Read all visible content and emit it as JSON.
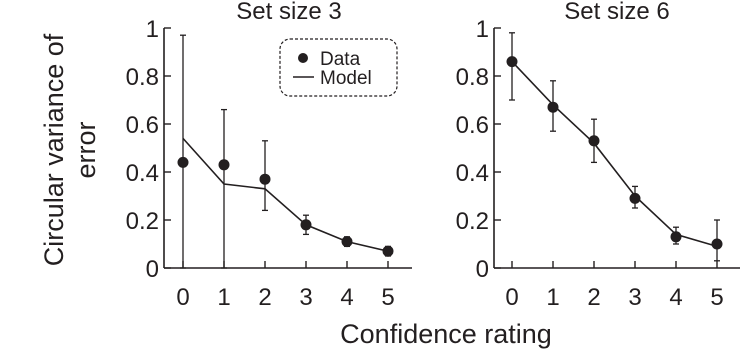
{
  "figure": {
    "ylabel_line1": "Circular variance of",
    "ylabel_line2": "error",
    "xlabel": "Confidence rating"
  },
  "legend": {
    "data_label": "Data",
    "model_label": "Model"
  },
  "chart_data": [
    {
      "type": "line",
      "title": "Set size 3",
      "x": [
        0,
        1,
        2,
        3,
        4,
        5
      ],
      "xticks": [
        "0",
        "1",
        "2",
        "3",
        "4",
        "5"
      ],
      "yticks": [
        "0",
        "0.2",
        "0.4",
        "0.6",
        "0.8",
        "1"
      ],
      "ylim": [
        0,
        1
      ],
      "xlabel": "Confidence rating",
      "ylabel": "Circular variance of error",
      "legend_position": "top-right",
      "series": [
        {
          "name": "Data",
          "kind": "points",
          "values": [
            0.44,
            0.43,
            0.37,
            0.18,
            0.11,
            0.07
          ],
          "err_low": [
            0.0,
            0.0,
            0.24,
            0.14,
            0.09,
            0.05
          ],
          "err_high": [
            0.97,
            0.66,
            0.53,
            0.22,
            0.13,
            0.09
          ]
        },
        {
          "name": "Model",
          "kind": "line",
          "values": [
            0.54,
            0.35,
            0.33,
            0.18,
            0.11,
            0.07
          ]
        }
      ]
    },
    {
      "type": "line",
      "title": "Set size 6",
      "x": [
        0,
        1,
        2,
        3,
        4,
        5
      ],
      "xticks": [
        "0",
        "1",
        "2",
        "3",
        "4",
        "5"
      ],
      "yticks": [
        "0",
        "0.2",
        "0.4",
        "0.6",
        "0.8",
        "1"
      ],
      "ylim": [
        0,
        1
      ],
      "xlabel": "Confidence rating",
      "series": [
        {
          "name": "Data",
          "kind": "points",
          "values": [
            0.86,
            0.67,
            0.53,
            0.29,
            0.13,
            0.1
          ],
          "err_low": [
            0.7,
            0.57,
            0.44,
            0.25,
            0.1,
            0.03
          ],
          "err_high": [
            0.98,
            0.78,
            0.62,
            0.34,
            0.17,
            0.2
          ]
        },
        {
          "name": "Model",
          "kind": "line",
          "values": [
            0.86,
            0.68,
            0.52,
            0.3,
            0.14,
            0.09
          ]
        }
      ]
    }
  ]
}
